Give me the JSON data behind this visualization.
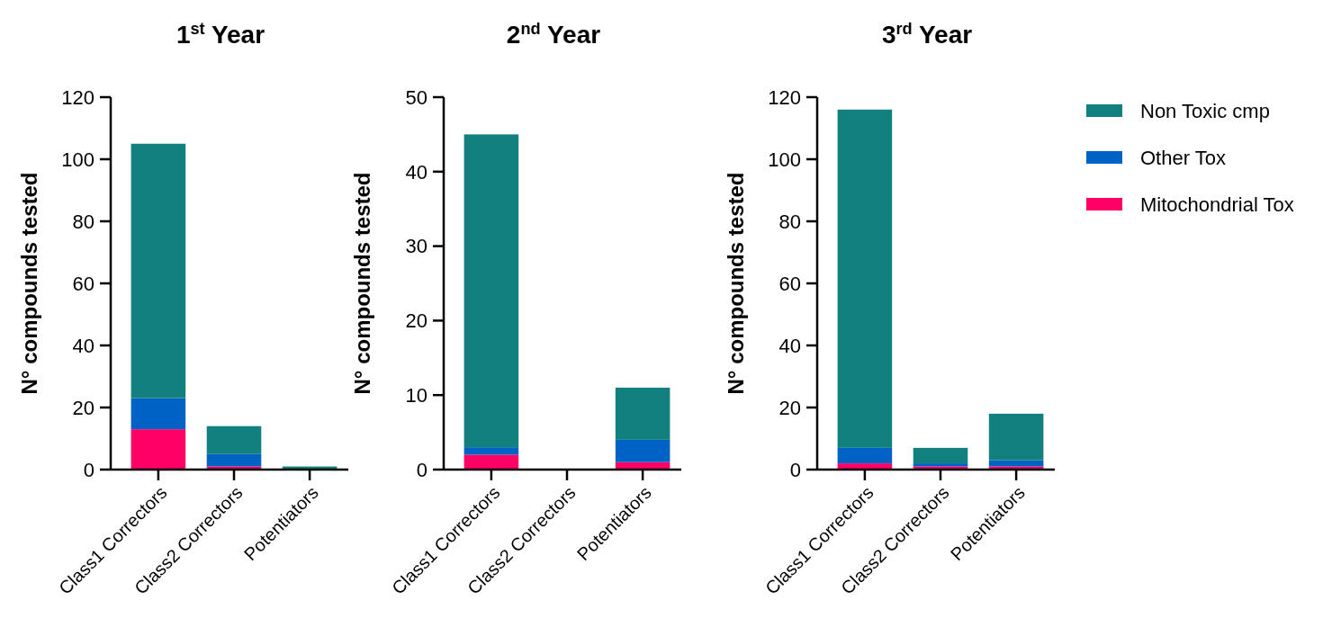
{
  "chart_data": [
    {
      "type": "bar",
      "title": "1$^{st}$ Year",
      "ylabel": "N° compounds tested",
      "categories": [
        "Class1 Correctors",
        "Class2 Correctors",
        "Potentiators"
      ],
      "stacked": true,
      "ylim": [
        0,
        120
      ],
      "yticks": [
        0,
        20,
        40,
        60,
        80,
        100,
        120
      ],
      "series": [
        {
          "color": "#ff0066",
          "values": [
            13,
            1,
            0
          ]
        },
        {
          "color": "#0062c4",
          "values": [
            10,
            4,
            0
          ]
        },
        {
          "color": "#12807e",
          "values": [
            82,
            9,
            1
          ]
        }
      ]
    },
    {
      "type": "bar",
      "title": "2$^{nd}$ Year",
      "ylabel": "N° compounds tested",
      "categories": [
        "Class1 Correctors",
        "Class2 Correctors",
        "Potentiators"
      ],
      "stacked": true,
      "ylim": [
        0,
        50
      ],
      "yticks": [
        0,
        10,
        20,
        30,
        40,
        50
      ],
      "series": [
        {
          "color": "#ff0066",
          "values": [
            2,
            0,
            1
          ]
        },
        {
          "color": "#0062c4",
          "values": [
            1,
            0,
            3
          ]
        },
        {
          "color": "#12807e",
          "values": [
            42,
            0,
            7
          ]
        }
      ]
    },
    {
      "type": "bar",
      "title": "3$^{rd}$ Year",
      "ylabel": "N° compounds tested",
      "categories": [
        "Class1 Correctors",
        "Class2 Correctors",
        "Potentiators"
      ],
      "stacked": true,
      "ylim": [
        0,
        120
      ],
      "yticks": [
        0,
        20,
        40,
        60,
        80,
        100,
        120
      ],
      "legend": "right",
      "series": [
        {
          "name": "Mitochondrial Tox",
          "color": "#ff0066",
          "values": [
            2,
            1,
            1
          ]
        },
        {
          "name": "Other Tox",
          "color": "#0062c4",
          "values": [
            5,
            1,
            2
          ]
        },
        {
          "name": "Non Toxic cmp",
          "color": "#12807e",
          "values": [
            109,
            5,
            15
          ]
        }
      ]
    }
  ]
}
